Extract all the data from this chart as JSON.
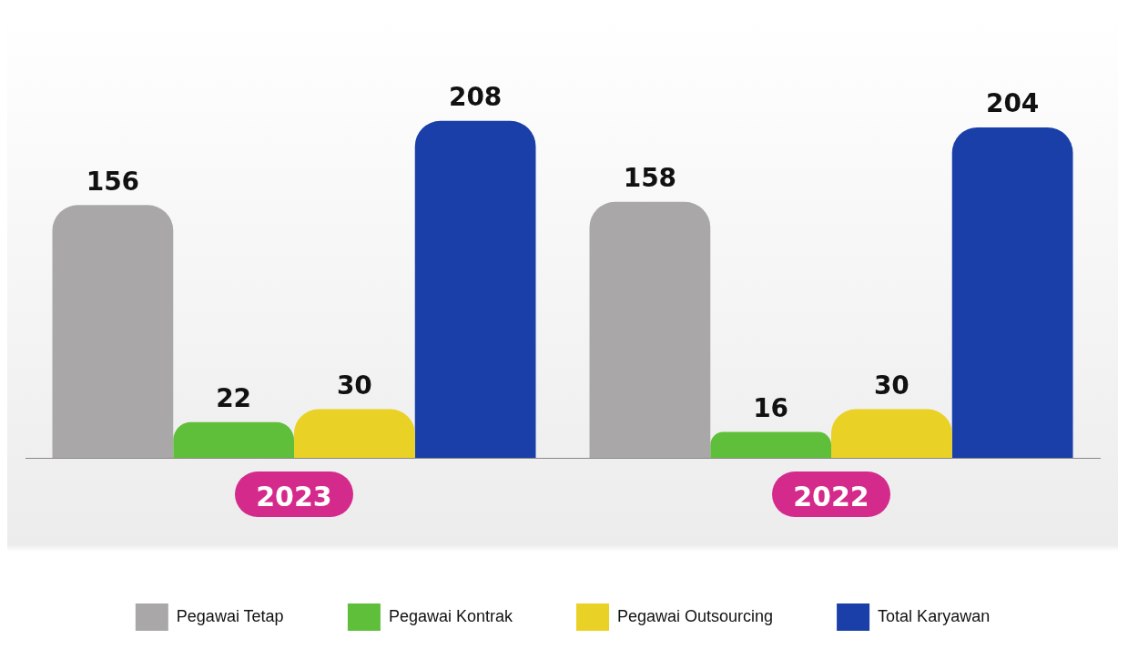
{
  "chart_data": {
    "type": "bar",
    "categories": [
      "2023",
      "2022"
    ],
    "series": [
      {
        "name": "Pegawai Tetap",
        "color": "#a9a7a7",
        "values": [
          156,
          158
        ]
      },
      {
        "name": "Pegawai Kontrak",
        "color": "#5fbf3a",
        "values": [
          22,
          16
        ]
      },
      {
        "name": "Pegawai Outsourcing",
        "color": "#ead125",
        "values": [
          30,
          30
        ]
      },
      {
        "name": "Total Karyawan",
        "color": "#1a3fa8",
        "values": [
          208,
          204
        ]
      }
    ],
    "data_labels": true,
    "legend": "bottom",
    "grid": false
  }
}
